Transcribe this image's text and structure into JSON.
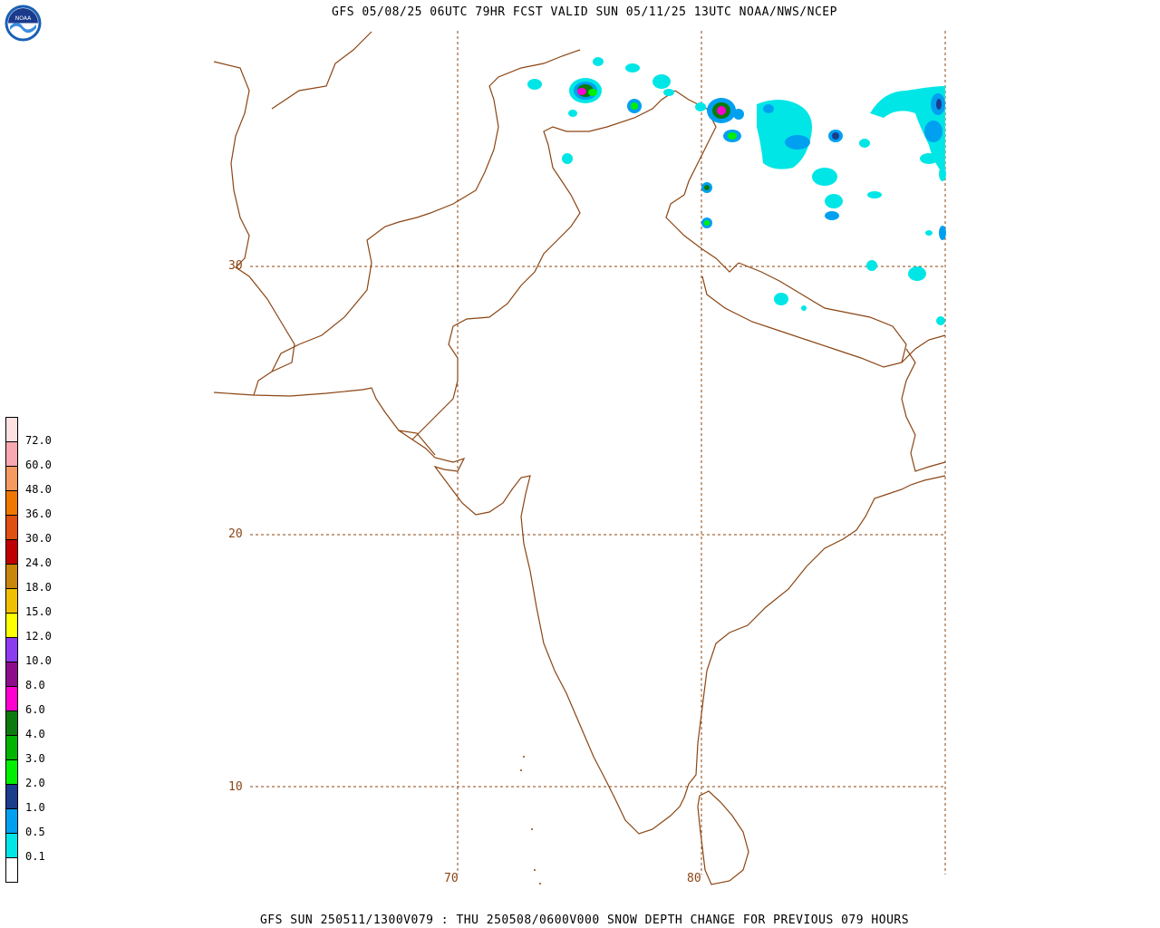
{
  "title": "GFS 05/08/25 06UTC 79HR FCST VALID SUN 05/11/25 13UTC NOAA/NWS/NCEP",
  "footer": "GFS SUN 250511/1300V079 : THU 250508/0600V000 SNOW DEPTH CHANGE FOR PREVIOUS 079 HOURS",
  "logo_text": "NOAA",
  "lat_labels": [
    "30",
    "20",
    "10"
  ],
  "lon_labels": [
    "70",
    "80"
  ],
  "legend": {
    "labels": [
      "72.0",
      "60.0",
      "48.0",
      "36.0",
      "30.0",
      "24.0",
      "18.0",
      "15.0",
      "12.0",
      "10.0",
      "8.0",
      "6.0",
      "4.0",
      "3.0",
      "2.0",
      "1.0",
      "0.5",
      "0.1"
    ],
    "colors": [
      "#fde0e0",
      "#f8a8b0",
      "#f59a60",
      "#f07800",
      "#e05010",
      "#c00000",
      "#c8860a",
      "#f0c000",
      "#ffff00",
      "#8c3cf0",
      "#8c0c8c",
      "#ff00d0",
      "#0c7a0c",
      "#00b400",
      "#00f000",
      "#1c3c8c",
      "#00a0f0",
      "#00e6e6",
      "#ffffff"
    ]
  },
  "colors": {
    "coast": "#8b4513",
    "grid": "#8b4513",
    "snow_light": "#00e6e6",
    "snow_mid": "#00a0f0",
    "snow_dark": "#1c3c8c"
  }
}
